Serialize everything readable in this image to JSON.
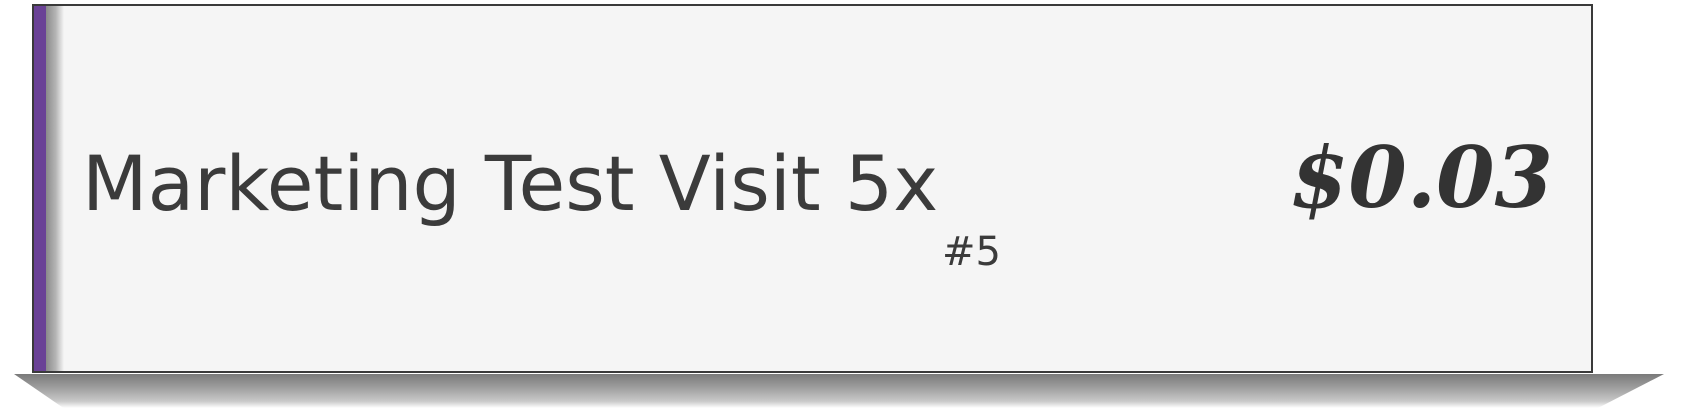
{
  "item": {
    "title": "Marketing Test Visit 5x",
    "number": "#5",
    "price": "$0.03"
  },
  "colors": {
    "accent": "#6a4296",
    "card_background": "#f5f5f5",
    "text": "#3b3b3b"
  }
}
